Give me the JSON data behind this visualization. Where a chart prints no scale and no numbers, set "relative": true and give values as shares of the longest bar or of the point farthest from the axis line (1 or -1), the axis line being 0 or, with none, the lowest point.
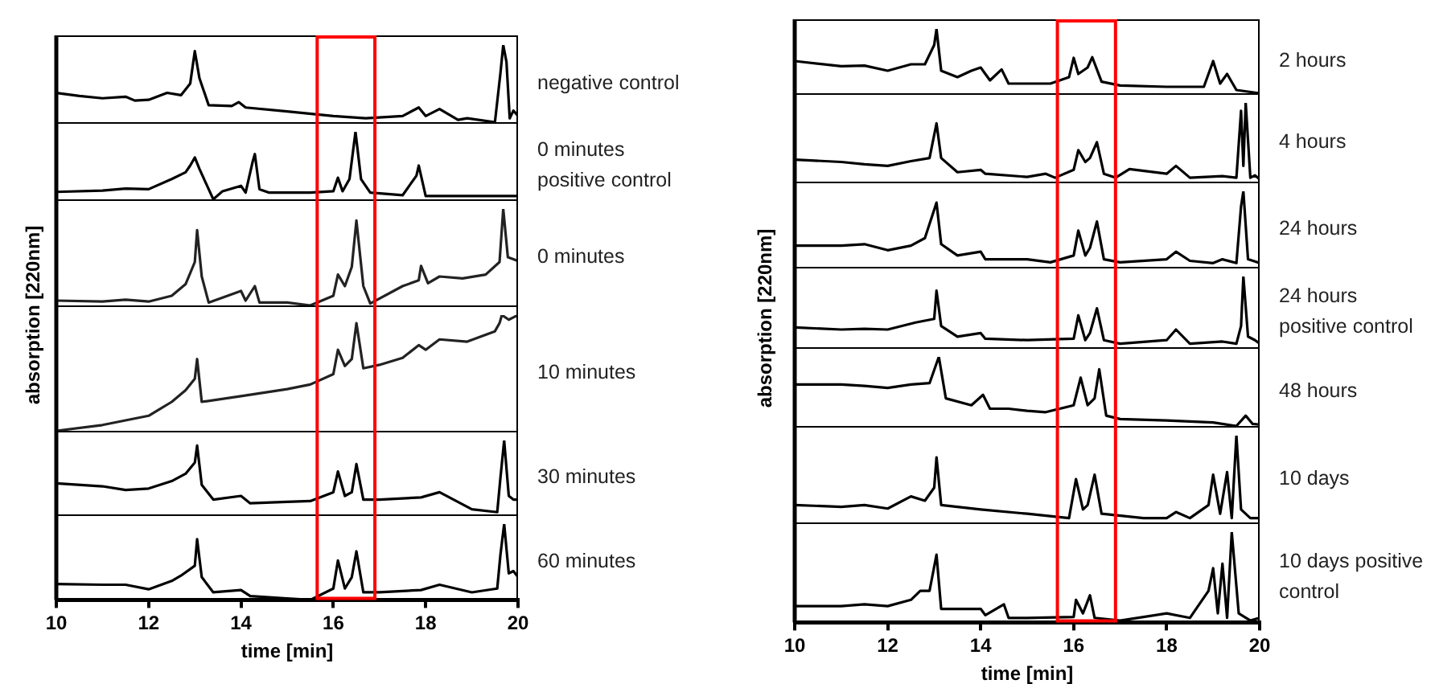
{
  "chart_data": [
    {
      "type": "line",
      "relative": true,
      "xlim": [
        10,
        20
      ],
      "tick_labels": false,
      "ref_lines": [
        {
          "axis": "x",
          "value": 15.65,
          "color": "#ff0000"
        },
        {
          "axis": "x",
          "value": 16.9,
          "color": "#ff0000"
        }
      ],
      "x": [
        10,
        10.5,
        11,
        11.5,
        11.7,
        12,
        12.4,
        12.7,
        12.9,
        13.0,
        13.1,
        13.3,
        13.8,
        13.95,
        14.1,
        15,
        16,
        16.7,
        17.5,
        17.85,
        18,
        18.3,
        18.7,
        18.9,
        19.5,
        19.62,
        19.68,
        19.75,
        19.82,
        19.9,
        20
      ],
      "series": [
        {
          "name": "negative control",
          "color": "#000000",
          "values": [
            0.38,
            0.34,
            0.31,
            0.33,
            0.28,
            0.29,
            0.38,
            0.35,
            0.5,
            0.92,
            0.57,
            0.22,
            0.21,
            0.26,
            0.19,
            0.14,
            0.08,
            0.05,
            0.08,
            0.19,
            0.08,
            0.17,
            0.03,
            0.05,
            0,
            0.64,
            1,
            0.78,
            0.05,
            0.15,
            0.08
          ]
        }
      ]
    },
    {
      "type": "line",
      "relative": true,
      "xlim": [
        10,
        20
      ],
      "tick_labels": false,
      "ref_lines": [
        {
          "axis": "x",
          "value": 15.65,
          "color": "#ff0000"
        },
        {
          "axis": "x",
          "value": 16.9,
          "color": "#ff0000"
        }
      ],
      "x": [
        10,
        11,
        11.5,
        12,
        12.5,
        12.8,
        12.9,
        13.0,
        13.1,
        13.3,
        13.4,
        13.6,
        14.0,
        14.1,
        14.25,
        14.3,
        14.4,
        14.6,
        15.5,
        16,
        16.1,
        16.2,
        16.35,
        16.48,
        16.6,
        16.8,
        17.5,
        17.8,
        17.85,
        18,
        19,
        20
      ],
      "series": [
        {
          "name": "0 minutes positive control",
          "color": "#000000",
          "values": [
            0.11,
            0.13,
            0.16,
            0.15,
            0.3,
            0.4,
            0.5,
            0.62,
            0.45,
            0.15,
            0,
            0.12,
            0.2,
            0.1,
            0.55,
            0.67,
            0.15,
            0.1,
            0.1,
            0.12,
            0.32,
            0.12,
            0.3,
            1,
            0.3,
            0.1,
            0.06,
            0.35,
            0.5,
            0.05,
            0.05,
            0.05
          ]
        }
      ]
    },
    {
      "type": "line",
      "relative": true,
      "xlim": [
        10,
        20
      ],
      "tick_labels": false,
      "ref_lines": [
        {
          "axis": "x",
          "value": 15.65,
          "color": "#ff0000"
        },
        {
          "axis": "x",
          "value": 16.9,
          "color": "#ff0000"
        }
      ],
      "x": [
        10,
        11,
        11.5,
        12,
        12.5,
        12.8,
        13.0,
        13.05,
        13.15,
        13.3,
        14,
        14.1,
        14.3,
        14.4,
        15,
        15.5,
        16,
        16.1,
        16.25,
        16.4,
        16.5,
        16.65,
        16.8,
        17.5,
        17.85,
        17.9,
        18.05,
        18.3,
        18.8,
        19.3,
        19.6,
        19.68,
        19.78,
        19.9,
        20
      ],
      "series": [
        {
          "name": "0 minutes",
          "color": "#222222",
          "values": [
            0.05,
            0.04,
            0.06,
            0.04,
            0.1,
            0.22,
            0.45,
            0.78,
            0.3,
            0.03,
            0.15,
            0.05,
            0.2,
            0.03,
            0.03,
            0,
            0.1,
            0.32,
            0.2,
            0.4,
            0.88,
            0.2,
            0.02,
            0.2,
            0.26,
            0.41,
            0.23,
            0.3,
            0.28,
            0.32,
            0.45,
            1,
            0.5,
            0.48,
            0.46
          ]
        }
      ]
    },
    {
      "type": "line",
      "relative": true,
      "ylabel": "absorption [220nm]",
      "xlim": [
        10,
        20
      ],
      "tick_labels": false,
      "ref_lines": [
        {
          "axis": "x",
          "value": 15.65,
          "color": "#ff0000"
        },
        {
          "axis": "x",
          "value": 16.9,
          "color": "#ff0000"
        }
      ],
      "x": [
        10,
        11,
        12,
        12.5,
        12.8,
        13.0,
        13.05,
        13.15,
        14,
        15,
        15.5,
        16,
        16.1,
        16.25,
        16.4,
        16.5,
        16.65,
        17,
        17.5,
        17.85,
        18,
        18.3,
        18.9,
        19.5,
        19.6,
        19.65,
        19.8,
        19.9,
        20
      ],
      "series": [
        {
          "name": "10 minutes",
          "color": "#222222",
          "values": [
            0,
            0.05,
            0.13,
            0.25,
            0.35,
            0.45,
            0.62,
            0.25,
            0.3,
            0.36,
            0.4,
            0.49,
            0.7,
            0.56,
            0.62,
            0.93,
            0.54,
            0.57,
            0.63,
            0.74,
            0.7,
            0.79,
            0.77,
            0.86,
            0.93,
            1,
            0.96,
            0.98,
            1
          ]
        }
      ]
    },
    {
      "type": "line",
      "relative": true,
      "xlim": [
        10,
        20
      ],
      "tick_labels": false,
      "ref_lines": [
        {
          "axis": "x",
          "value": 15.65,
          "color": "#ff0000"
        },
        {
          "axis": "x",
          "value": 16.9,
          "color": "#ff0000"
        }
      ],
      "x": [
        10,
        11,
        11.5,
        12,
        12.5,
        12.8,
        13.0,
        13.05,
        13.15,
        13.4,
        14,
        14.2,
        15,
        15.5,
        16,
        16.1,
        16.25,
        16.4,
        16.5,
        16.65,
        17,
        17.9,
        18.3,
        19,
        19.55,
        19.62,
        19.7,
        19.8,
        19.9,
        20
      ],
      "series": [
        {
          "name": "30 minutes",
          "color": "#000000",
          "values": [
            0.42,
            0.38,
            0.33,
            0.35,
            0.45,
            0.55,
            0.7,
            0.93,
            0.4,
            0.2,
            0.25,
            0.15,
            0.17,
            0.18,
            0.3,
            0.58,
            0.25,
            0.3,
            0.68,
            0.2,
            0.2,
            0.23,
            0.3,
            0.07,
            0.03,
            0.5,
            1,
            0.25,
            0.2,
            0.2
          ]
        }
      ]
    },
    {
      "type": "line",
      "relative": true,
      "xlabel": "time [min]",
      "xlim": [
        10,
        20
      ],
      "xticks": [
        10,
        12,
        14,
        16,
        18,
        20
      ],
      "tick_labels": "x",
      "ref_lines": [
        {
          "axis": "x",
          "value": 15.65,
          "color": "#ff0000"
        },
        {
          "axis": "x",
          "value": 16.9,
          "color": "#ff0000"
        }
      ],
      "x": [
        10,
        11,
        11.5,
        12,
        12.5,
        12.7,
        13.0,
        13.05,
        13.15,
        13.4,
        14,
        14.2,
        15,
        15.5,
        16,
        16.1,
        16.25,
        16.4,
        16.5,
        16.65,
        17,
        17.9,
        18.3,
        19,
        19.55,
        19.62,
        19.7,
        19.8,
        19.9,
        20
      ],
      "series": [
        {
          "name": "60 minutes",
          "color": "#000000",
          "values": [
            0.21,
            0.2,
            0.2,
            0.14,
            0.25,
            0.32,
            0.45,
            0.8,
            0.3,
            0.1,
            0.13,
            0.05,
            0.02,
            0,
            0.15,
            0.52,
            0.15,
            0.3,
            0.64,
            0.1,
            0.1,
            0.13,
            0.2,
            0.1,
            0.15,
            0.6,
            1,
            0.35,
            0.38,
            0.3
          ]
        }
      ]
    },
    {
      "type": "line",
      "relative": true,
      "xlim": [
        10,
        20
      ],
      "tick_labels": false,
      "ref_lines": [
        {
          "axis": "x",
          "value": 15.65,
          "color": "#ff0000"
        },
        {
          "axis": "x",
          "value": 16.9,
          "color": "#ff0000"
        }
      ],
      "x": [
        10,
        11,
        11.5,
        12,
        12.5,
        12.8,
        13.0,
        13.05,
        13.15,
        13.5,
        13.8,
        14,
        14.2,
        14.45,
        14.6,
        15.5,
        15.9,
        16,
        16.1,
        16.3,
        16.4,
        16.6,
        17,
        18,
        18.8,
        19,
        19.15,
        19.3,
        19.5,
        20
      ],
      "series": [
        {
          "name": "2 hours",
          "color": "#000000",
          "values": [
            0.5,
            0.42,
            0.43,
            0.35,
            0.45,
            0.45,
            0.75,
            1,
            0.35,
            0.25,
            0.35,
            0.4,
            0.2,
            0.37,
            0.15,
            0.15,
            0.25,
            0.55,
            0.3,
            0.4,
            0.56,
            0.18,
            0.12,
            0.1,
            0.1,
            0.5,
            0.15,
            0.3,
            0.05,
            0
          ]
        }
      ]
    },
    {
      "type": "line",
      "relative": true,
      "xlim": [
        10,
        20
      ],
      "tick_labels": false,
      "ref_lines": [
        {
          "axis": "x",
          "value": 15.65,
          "color": "#ff0000"
        },
        {
          "axis": "x",
          "value": 16.9,
          "color": "#ff0000"
        }
      ],
      "x": [
        10,
        11,
        11.5,
        12,
        12.5,
        12.9,
        13.05,
        13.15,
        13.5,
        14,
        14.1,
        15,
        15.4,
        15.6,
        16,
        16.1,
        16.25,
        16.35,
        16.5,
        16.65,
        16.9,
        17.2,
        18,
        18.2,
        18.5,
        19.2,
        19.5,
        19.6,
        19.65,
        19.7,
        19.8,
        19.9,
        20
      ],
      "series": [
        {
          "name": "4 hours",
          "color": "#000000",
          "values": [
            0.28,
            0.25,
            0.22,
            0.2,
            0.26,
            0.3,
            0.74,
            0.3,
            0.12,
            0.15,
            0.1,
            0.06,
            0.1,
            0.05,
            0.15,
            0.4,
            0.25,
            0.3,
            0.5,
            0.1,
            0.05,
            0.16,
            0.1,
            0.2,
            0.05,
            0.07,
            0.05,
            0.9,
            0.2,
            1,
            0.05,
            0.08,
            0.03
          ]
        }
      ]
    },
    {
      "type": "line",
      "relative": true,
      "xlim": [
        10,
        20
      ],
      "tick_labels": false,
      "ref_lines": [
        {
          "axis": "x",
          "value": 15.65,
          "color": "#ff0000"
        },
        {
          "axis": "x",
          "value": 16.9,
          "color": "#ff0000"
        }
      ],
      "x": [
        10,
        11,
        11.5,
        12,
        12.5,
        12.8,
        13.05,
        13.15,
        13.5,
        14,
        14.1,
        15,
        15.5,
        16,
        16.1,
        16.25,
        16.35,
        16.5,
        16.65,
        17,
        18,
        18.2,
        18.5,
        19,
        19.2,
        19.5,
        19.6,
        19.65,
        19.75,
        20
      ],
      "series": [
        {
          "name": "24 hours",
          "color": "#000000",
          "values": [
            0.28,
            0.28,
            0.3,
            0.22,
            0.28,
            0.38,
            0.85,
            0.3,
            0.15,
            0.2,
            0.1,
            0.1,
            0.06,
            0.15,
            0.48,
            0.15,
            0.25,
            0.6,
            0.1,
            0.06,
            0.1,
            0.2,
            0.08,
            0.05,
            0.1,
            0.05,
            0.8,
            1,
            0.1,
            0.05
          ]
        }
      ]
    },
    {
      "type": "line",
      "relative": true,
      "ylabel": "absorption [220nm]",
      "xlim": [
        10,
        20
      ],
      "tick_labels": false,
      "ref_lines": [
        {
          "axis": "x",
          "value": 15.65,
          "color": "#ff0000"
        },
        {
          "axis": "x",
          "value": 16.9,
          "color": "#ff0000"
        }
      ],
      "x": [
        10,
        11,
        11.5,
        12,
        12.6,
        13.0,
        13.05,
        13.15,
        13.5,
        14,
        14.1,
        15,
        16,
        16.1,
        16.25,
        16.35,
        16.5,
        16.65,
        17,
        18,
        18.2,
        18.5,
        19.2,
        19.5,
        19.6,
        19.65,
        19.75,
        19.9,
        20
      ],
      "series": [
        {
          "name": "24 hours positive control",
          "color": "#000000",
          "values": [
            0.28,
            0.25,
            0.26,
            0.25,
            0.35,
            0.4,
            0.8,
            0.3,
            0.15,
            0.2,
            0.12,
            0.1,
            0.12,
            0.45,
            0.1,
            0.2,
            0.55,
            0.1,
            0.05,
            0.1,
            0.25,
            0.05,
            0.08,
            0.05,
            0.3,
            1,
            0.15,
            0.1,
            0.05
          ]
        }
      ]
    },
    {
      "type": "line",
      "relative": true,
      "xlim": [
        10,
        20
      ],
      "tick_labels": false,
      "ref_lines": [
        {
          "axis": "x",
          "value": 15.65,
          "color": "#ff0000"
        },
        {
          "axis": "x",
          "value": 16.9,
          "color": "#ff0000"
        }
      ],
      "x": [
        10,
        11,
        11.5,
        12,
        12.5,
        12.9,
        13.1,
        13.25,
        13.8,
        14.05,
        14.2,
        14.6,
        15,
        15.4,
        16,
        16.15,
        16.3,
        16.45,
        16.55,
        16.7,
        17,
        18,
        19,
        19.5,
        19.7,
        19.85,
        20
      ],
      "series": [
        {
          "name": "48 hours",
          "color": "#000000",
          "values": [
            0.6,
            0.6,
            0.58,
            0.55,
            0.6,
            0.62,
            1,
            0.4,
            0.3,
            0.45,
            0.25,
            0.25,
            0.22,
            0.2,
            0.3,
            0.7,
            0.3,
            0.4,
            0.82,
            0.15,
            0.1,
            0.08,
            0.05,
            0,
            0.15,
            0.03,
            0.02
          ]
        }
      ]
    },
    {
      "type": "line",
      "relative": true,
      "xlim": [
        10,
        20
      ],
      "tick_labels": false,
      "ref_lines": [
        {
          "axis": "x",
          "value": 15.65,
          "color": "#ff0000"
        },
        {
          "axis": "x",
          "value": 16.9,
          "color": "#ff0000"
        }
      ],
      "x": [
        10,
        11,
        11.5,
        12,
        12.5,
        12.8,
        13.0,
        13.05,
        13.15,
        14,
        15,
        15.9,
        16.05,
        16.2,
        16.3,
        16.45,
        16.6,
        17.5,
        18,
        18.2,
        18.5,
        18.9,
        19.0,
        19.15,
        19.3,
        19.4,
        19.5,
        19.6,
        19.8,
        20
      ],
      "series": [
        {
          "name": "10 days",
          "color": "#000000",
          "values": [
            0.2,
            0.18,
            0.2,
            0.16,
            0.3,
            0.25,
            0.4,
            0.75,
            0.2,
            0.15,
            0.1,
            0.05,
            0.5,
            0.15,
            0.2,
            0.55,
            0.1,
            0.05,
            0.05,
            0.12,
            0.05,
            0.2,
            0.55,
            0.1,
            0.58,
            0.05,
            1,
            0.15,
            0.05,
            0.05
          ]
        }
      ]
    },
    {
      "type": "line",
      "relative": true,
      "xlabel": "time [min]",
      "xlim": [
        10,
        20
      ],
      "xticks": [
        10,
        12,
        14,
        16,
        18,
        20
      ],
      "tick_labels": "x",
      "ref_lines": [
        {
          "axis": "x",
          "value": 15.65,
          "color": "#ff0000"
        },
        {
          "axis": "x",
          "value": 16.9,
          "color": "#ff0000"
        }
      ],
      "x": [
        10,
        11,
        11.5,
        12,
        12.5,
        12.7,
        12.9,
        13.05,
        13.15,
        14,
        14.1,
        14.5,
        14.6,
        15,
        16,
        16.05,
        16.2,
        16.35,
        16.45,
        17,
        18,
        18.5,
        18.9,
        19.0,
        19.1,
        19.2,
        19.3,
        19.4,
        19.55,
        19.8,
        20
      ],
      "series": [
        {
          "name": "10 days positive control",
          "color": "#000000",
          "values": [
            0.18,
            0.18,
            0.2,
            0.18,
            0.25,
            0.35,
            0.35,
            0.75,
            0.15,
            0.15,
            0.08,
            0.2,
            0.05,
            0.05,
            0.06,
            0.25,
            0.1,
            0.3,
            0.05,
            0.02,
            0.1,
            0.05,
            0.35,
            0.6,
            0.1,
            0.65,
            0.05,
            1,
            0.1,
            0.02,
            0.05
          ]
        }
      ]
    }
  ]
}
